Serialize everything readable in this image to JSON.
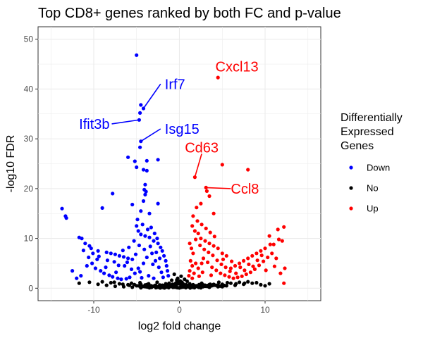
{
  "chart_data": {
    "type": "scatter",
    "title": "Top CD8+ genes ranked by both FC and p-value",
    "xlabel": "log2 fold change",
    "ylabel": "-log10 FDR",
    "xlim": [
      -16.5,
      16.5
    ],
    "ylim": [
      -2.5,
      52.5
    ],
    "xticks": [
      -10,
      0,
      10
    ],
    "yticks": [
      0,
      10,
      20,
      30,
      40,
      50
    ],
    "grid": true,
    "legend": {
      "title_lines": [
        "Differentially",
        " Expressed",
        " Genes"
      ],
      "placement": "right",
      "entries": [
        {
          "label": "Down",
          "color": "#0000FF"
        },
        {
          "label": "No",
          "color": "#000000"
        },
        {
          "label": "Up",
          "color": "#FF0000"
        }
      ]
    },
    "series": [
      {
        "name": "Down",
        "color": "#0000FF",
        "points": [
          [
            -5.0,
            46.8
          ],
          [
            -4.5,
            36.8
          ],
          [
            -4.2,
            36.1
          ],
          [
            -4.6,
            35.2
          ],
          [
            -4.7,
            33.8
          ],
          [
            -4.5,
            29.5
          ],
          [
            -4.6,
            28.3
          ],
          [
            -6.0,
            26.3
          ],
          [
            -5.2,
            25.5
          ],
          [
            -3.8,
            25.6
          ],
          [
            -2.5,
            25.8
          ],
          [
            -5.0,
            24.3
          ],
          [
            -4.2,
            23.8
          ],
          [
            -3.8,
            23.6
          ],
          [
            -4.0,
            20.8
          ],
          [
            -4.1,
            19.8
          ],
          [
            -3.9,
            19.4
          ],
          [
            -7.8,
            19.0
          ],
          [
            -4.0,
            18.8
          ],
          [
            -4.2,
            17.5
          ],
          [
            -2.5,
            17.0
          ],
          [
            -5.5,
            16.8
          ],
          [
            -9.0,
            16.1
          ],
          [
            -4.5,
            15.5
          ],
          [
            -13.7,
            16.0
          ],
          [
            -13.3,
            14.5
          ],
          [
            -13.2,
            14.1
          ],
          [
            -3.5,
            15.0
          ],
          [
            -11.7,
            10.2
          ],
          [
            -11.4,
            10.0
          ],
          [
            -11.0,
            9.0
          ],
          [
            -10.5,
            8.5
          ],
          [
            -10.3,
            8.0
          ],
          [
            -9.5,
            7.5
          ],
          [
            -8.5,
            7.2
          ],
          [
            -8.0,
            7.0
          ],
          [
            -7.5,
            6.8
          ],
          [
            -7.0,
            6.5
          ],
          [
            -6.5,
            6.3
          ],
          [
            -6.0,
            6.0
          ],
          [
            -5.5,
            5.8
          ],
          [
            -5.0,
            12.5
          ],
          [
            -4.8,
            11.5
          ],
          [
            -4.5,
            10.8
          ],
          [
            -4.0,
            10.5
          ],
          [
            -3.5,
            10.2
          ],
          [
            -3.0,
            9.5
          ],
          [
            -2.5,
            9.0
          ],
          [
            -2.2,
            8.2
          ],
          [
            -2.0,
            7.5
          ],
          [
            -1.8,
            6.5
          ],
          [
            -1.6,
            5.5
          ],
          [
            -1.5,
            4.5
          ],
          [
            -1.4,
            3.5
          ],
          [
            -1.3,
            2.5
          ],
          [
            -12.5,
            3.5
          ],
          [
            -12.0,
            2.0
          ],
          [
            -11.5,
            2.5
          ],
          [
            -10.8,
            4.5
          ],
          [
            -10.2,
            5.0
          ],
          [
            -9.8,
            4.0
          ],
          [
            -9.2,
            3.5
          ],
          [
            -8.8,
            3.0
          ],
          [
            -8.2,
            2.6
          ],
          [
            -7.8,
            2.3
          ],
          [
            -7.2,
            2.0
          ],
          [
            -6.8,
            1.8
          ],
          [
            -6.2,
            1.9
          ],
          [
            -5.8,
            2.2
          ],
          [
            -5.2,
            3.0
          ],
          [
            -4.8,
            4.0
          ],
          [
            -4.2,
            5.0
          ],
          [
            -3.8,
            6.2
          ],
          [
            -3.2,
            7.0
          ],
          [
            -2.8,
            5.5
          ],
          [
            -2.4,
            4.2
          ],
          [
            -2.1,
            3.2
          ],
          [
            -1.9,
            2.2
          ],
          [
            -3.0,
            2.0
          ],
          [
            -3.6,
            2.5
          ],
          [
            -4.4,
            2.1
          ],
          [
            -5.6,
            3.8
          ],
          [
            -6.4,
            4.5
          ],
          [
            -7.4,
            3.2
          ],
          [
            -8.6,
            4.2
          ],
          [
            -9.6,
            5.8
          ],
          [
            -10.6,
            6.2
          ],
          [
            -4.9,
            13.8
          ],
          [
            -4.3,
            12.8
          ],
          [
            -3.7,
            11.8
          ],
          [
            -3.3,
            12.2
          ],
          [
            -2.9,
            11.0
          ],
          [
            -2.6,
            10.0
          ],
          [
            -5.3,
            9.5
          ],
          [
            -5.9,
            8.2
          ],
          [
            -6.6,
            7.6
          ],
          [
            -7.6,
            5.3
          ],
          [
            -8.4,
            5.6
          ],
          [
            -9.4,
            6.4
          ],
          [
            -10.1,
            7.0
          ],
          [
            -11.2,
            7.6
          ],
          [
            -4.7,
            8.6
          ],
          [
            -4.1,
            7.8
          ],
          [
            -3.4,
            8.4
          ],
          [
            -2.7,
            7.2
          ],
          [
            -2.3,
            6.0
          ],
          [
            -5.1,
            6.8
          ],
          [
            -6.1,
            5.2
          ],
          [
            -7.1,
            4.6
          ],
          [
            -3.1,
            4.8
          ],
          [
            -4.6,
            3.3
          ]
        ]
      },
      {
        "name": "Up",
        "color": "#FF0000",
        "points": [
          [
            4.5,
            42.3
          ],
          [
            5.0,
            24.8
          ],
          [
            8.0,
            23.8
          ],
          [
            1.8,
            22.3
          ],
          [
            3.1,
            20.2
          ],
          [
            3.2,
            19.5
          ],
          [
            3.5,
            18.5
          ],
          [
            2.5,
            17.0
          ],
          [
            2.0,
            16.2
          ],
          [
            4.0,
            15.0
          ],
          [
            12.2,
            12.3
          ],
          [
            11.5,
            11.8
          ],
          [
            10.5,
            10.5
          ],
          [
            12.0,
            9.5
          ],
          [
            11.0,
            8.8
          ],
          [
            10.0,
            8.0
          ],
          [
            9.5,
            7.5
          ],
          [
            9.0,
            7.0
          ],
          [
            8.5,
            6.5
          ],
          [
            8.0,
            6.0
          ],
          [
            7.5,
            5.5
          ],
          [
            7.0,
            5.0
          ],
          [
            6.5,
            4.5
          ],
          [
            6.0,
            4.0
          ],
          [
            1.5,
            12.5
          ],
          [
            1.8,
            11.5
          ],
          [
            2.2,
            11.0
          ],
          [
            2.5,
            10.0
          ],
          [
            3.0,
            9.5
          ],
          [
            3.5,
            9.0
          ],
          [
            4.0,
            8.5
          ],
          [
            4.5,
            8.0
          ],
          [
            5.0,
            7.0
          ],
          [
            5.5,
            6.5
          ],
          [
            1.2,
            9.0
          ],
          [
            1.4,
            8.0
          ],
          [
            1.6,
            7.0
          ],
          [
            1.3,
            5.5
          ],
          [
            1.5,
            4.5
          ],
          [
            1.2,
            3.5
          ],
          [
            1.1,
            2.5
          ],
          [
            2.8,
            6.0
          ],
          [
            3.3,
            5.2
          ],
          [
            3.8,
            4.2
          ],
          [
            4.3,
            3.6
          ],
          [
            4.8,
            3.0
          ],
          [
            5.3,
            2.6
          ],
          [
            5.8,
            2.3
          ],
          [
            6.3,
            2.0
          ],
          [
            6.8,
            2.2
          ],
          [
            7.3,
            2.4
          ],
          [
            7.8,
            2.8
          ],
          [
            8.3,
            3.2
          ],
          [
            8.8,
            3.8
          ],
          [
            9.3,
            4.6
          ],
          [
            9.8,
            5.4
          ],
          [
            10.3,
            6.2
          ],
          [
            10.8,
            7.0
          ],
          [
            11.3,
            6.0
          ],
          [
            12.3,
            4.0
          ],
          [
            12.2,
            1.0
          ],
          [
            11.8,
            3.0
          ],
          [
            2.1,
            13.5
          ],
          [
            2.6,
            12.8
          ],
          [
            3.1,
            12.0
          ],
          [
            3.6,
            11.2
          ],
          [
            4.1,
            10.4
          ],
          [
            2.4,
            8.6
          ],
          [
            2.9,
            7.8
          ],
          [
            3.4,
            7.2
          ],
          [
            3.9,
            6.6
          ],
          [
            4.4,
            5.6
          ],
          [
            4.9,
            4.8
          ],
          [
            5.4,
            4.2
          ],
          [
            5.9,
            3.4
          ],
          [
            6.6,
            3.0
          ],
          [
            7.6,
            3.6
          ],
          [
            8.6,
            4.4
          ],
          [
            9.6,
            6.6
          ],
          [
            10.6,
            8.8
          ],
          [
            11.6,
            9.8
          ],
          [
            1.7,
            3.0
          ],
          [
            2.3,
            2.4
          ],
          [
            2.7,
            3.2
          ],
          [
            3.7,
            2.6
          ],
          [
            1.9,
            5.0
          ],
          [
            2.2,
            4.0
          ],
          [
            1.5,
            2.0
          ],
          [
            5.1,
            5.8
          ],
          [
            6.1,
            5.4
          ],
          [
            7.1,
            4.2
          ],
          [
            8.1,
            4.8
          ],
          [
            9.1,
            5.6
          ],
          [
            10.1,
            3.6
          ],
          [
            11.1,
            4.4
          ],
          [
            1.6,
            14.5
          ],
          [
            1.9,
            9.8
          ],
          [
            2.6,
            5.0
          ]
        ]
      },
      {
        "name": "No",
        "color": "#000000",
        "points": [
          [
            -11.7,
            1.0
          ],
          [
            -10.5,
            1.2
          ],
          [
            -9.5,
            0.8
          ],
          [
            -8.5,
            0.6
          ],
          [
            -7.5,
            0.4
          ],
          [
            -6.5,
            0.3
          ],
          [
            -5.5,
            0.2
          ],
          [
            -4.5,
            0.1
          ],
          [
            -3.5,
            0.1
          ],
          [
            -2.5,
            0.2
          ],
          [
            -1.5,
            0.3
          ],
          [
            -1.0,
            0.5
          ],
          [
            -0.8,
            0.8
          ],
          [
            -0.5,
            0.2
          ],
          [
            0.0,
            0.1
          ],
          [
            0.5,
            0.3
          ],
          [
            0.8,
            0.7
          ],
          [
            1.0,
            0.4
          ],
          [
            1.5,
            0.2
          ],
          [
            2.5,
            0.1
          ],
          [
            3.5,
            0.2
          ],
          [
            4.5,
            0.3
          ],
          [
            5.5,
            0.5
          ],
          [
            6.5,
            0.6
          ],
          [
            7.5,
            0.8
          ],
          [
            8.5,
            1.0
          ],
          [
            9.5,
            0.7
          ],
          [
            10.5,
            0.9
          ],
          [
            -9.0,
            1.3
          ],
          [
            -8.0,
            1.1
          ],
          [
            -7.0,
            0.9
          ],
          [
            -6.0,
            0.7
          ],
          [
            -5.0,
            0.5
          ],
          [
            -4.0,
            0.3
          ],
          [
            -3.0,
            0.4
          ],
          [
            -2.0,
            0.6
          ],
          [
            -1.2,
            1.0
          ],
          [
            -0.3,
            1.5
          ],
          [
            0.3,
            1.2
          ],
          [
            1.2,
            0.9
          ],
          [
            2.0,
            0.5
          ],
          [
            3.0,
            0.4
          ],
          [
            4.0,
            0.6
          ],
          [
            5.0,
            0.8
          ],
          [
            6.0,
            1.0
          ],
          [
            7.0,
            1.2
          ],
          [
            8.0,
            1.3
          ],
          [
            9.0,
            1.1
          ],
          [
            10.0,
            0.5
          ],
          [
            -0.6,
            2.8
          ],
          [
            0.2,
            2.4
          ],
          [
            -0.2,
            2.0
          ],
          [
            0.6,
            1.8
          ],
          [
            -0.9,
            1.6
          ],
          [
            0.9,
            1.4
          ],
          [
            -1.6,
            0.9
          ],
          [
            1.6,
            0.7
          ],
          [
            -2.6,
            1.2
          ],
          [
            2.6,
            1.0
          ],
          [
            -3.6,
            0.9
          ],
          [
            3.6,
            0.8
          ],
          [
            -4.6,
            1.1
          ],
          [
            4.6,
            1.2
          ],
          [
            -5.6,
            1.0
          ],
          [
            5.6,
            1.1
          ],
          [
            -6.6,
            0.8
          ],
          [
            6.6,
            0.9
          ],
          [
            -7.6,
            1.2
          ],
          [
            7.6,
            1.0
          ]
        ]
      }
    ],
    "annotations": [
      {
        "label": "Irf7",
        "x": -4.2,
        "y": 36.1,
        "color": "#0000FF"
      },
      {
        "label": "Ifit3b",
        "x": -4.7,
        "y": 33.8,
        "color": "#0000FF"
      },
      {
        "label": "Isg15",
        "x": -4.5,
        "y": 29.5,
        "color": "#0000FF"
      },
      {
        "label": "Cxcl13",
        "x": 4.5,
        "y": 42.3,
        "color": "#FF0000"
      },
      {
        "label": "Cd63",
        "x": 1.8,
        "y": 22.3,
        "color": "#FF0000"
      },
      {
        "label": "Ccl8",
        "x": 3.1,
        "y": 20.2,
        "color": "#FF0000"
      }
    ]
  }
}
